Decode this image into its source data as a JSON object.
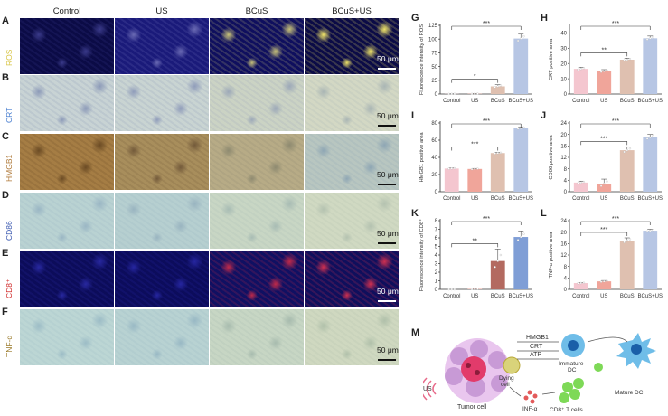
{
  "micro": {
    "columns": [
      "Control",
      "US",
      "BCuS",
      "BCuS+US"
    ],
    "rows": [
      {
        "letter": "A",
        "label": "ROS",
        "label_color": "#d9c64a",
        "tone": "fluor_ros",
        "scale": "50 μm",
        "scale_dark": false
      },
      {
        "letter": "B",
        "label": "CRT",
        "label_color": "#4a7fd0",
        "tone": "ihc_blue",
        "scale": "50 μm",
        "scale_dark": true
      },
      {
        "letter": "C",
        "label": "HMGB1",
        "label_color": "#b07a3a",
        "tone": "ihc_brown",
        "scale": "50 μm",
        "scale_dark": true
      },
      {
        "letter": "D",
        "label": "CD86",
        "label_color": "#3a58b0",
        "tone": "ihc_teal",
        "scale": "50 μm",
        "scale_dark": true
      },
      {
        "letter": "E",
        "label": "CD8⁺",
        "label_color": "#d02a2a",
        "tone": "fluor_cd8",
        "scale": "50 μm",
        "scale_dark": false
      },
      {
        "letter": "F",
        "label": "TNF-α",
        "label_color": "#9a7a2a",
        "tone": "ihc_teal2",
        "scale": "50 μm",
        "scale_dark": true
      }
    ]
  },
  "chart_data": [
    {
      "panel": "G",
      "type": "bar",
      "ylabel": "Fluorescence intensity of ROS",
      "categories": [
        "Control",
        "US",
        "BCuS",
        "BCuS+US"
      ],
      "values": [
        0.3,
        0.5,
        14,
        101
      ],
      "errors": [
        0.3,
        0.4,
        3,
        8
      ],
      "ylim": [
        0,
        125
      ],
      "yticks": [
        0,
        25,
        50,
        75,
        100,
        125
      ],
      "colors": [
        "#f4c6cf",
        "#f0a59a",
        "#dfc0b0",
        "#b7c6e4"
      ],
      "sig": [
        {
          "from": 0,
          "to": 2,
          "label": "*"
        },
        {
          "from": 0,
          "to": 3,
          "label": "***"
        }
      ]
    },
    {
      "panel": "H",
      "type": "bar",
      "ylabel": "CRT positive area",
      "categories": [
        "Control",
        "US",
        "BCuS",
        "BCuS+US"
      ],
      "values": [
        16.5,
        15,
        22.5,
        36.5
      ],
      "errors": [
        1,
        1,
        1,
        1.5
      ],
      "ylim": [
        0,
        45
      ],
      "yticks": [
        0,
        10,
        20,
        30,
        40
      ],
      "colors": [
        "#f4c6cf",
        "#f0a59a",
        "#dfc0b0",
        "#b7c6e4"
      ],
      "sig": [
        {
          "from": 0,
          "to": 2,
          "label": "**"
        },
        {
          "from": 0,
          "to": 3,
          "label": "***"
        }
      ]
    },
    {
      "panel": "I",
      "type": "bar",
      "ylabel": "HMGB1 positive area",
      "categories": [
        "Control",
        "US",
        "BCuS",
        "BCuS+US"
      ],
      "values": [
        27,
        26.5,
        45,
        74
      ],
      "errors": [
        0.6,
        0.6,
        0.8,
        1.5
      ],
      "ylim": [
        0,
        80
      ],
      "yticks": [
        0,
        20,
        40,
        60,
        80
      ],
      "colors": [
        "#f4c6cf",
        "#f0a59a",
        "#dfc0b0",
        "#b7c6e4"
      ],
      "sig": [
        {
          "from": 0,
          "to": 2,
          "label": "***"
        },
        {
          "from": 0,
          "to": 3,
          "label": "***"
        }
      ]
    },
    {
      "panel": "J",
      "type": "bar",
      "ylabel": "CD86 positive area",
      "categories": [
        "Control",
        "US",
        "BCuS",
        "BCuS+US"
      ],
      "values": [
        3.2,
        2.8,
        14.5,
        19
      ],
      "errors": [
        0.5,
        1.6,
        1.2,
        1
      ],
      "ylim": [
        0,
        24
      ],
      "yticks": [
        0,
        4,
        8,
        12,
        16,
        20,
        24
      ],
      "colors": [
        "#f4c6cf",
        "#f0a59a",
        "#dfc0b0",
        "#b7c6e4"
      ],
      "sig": [
        {
          "from": 0,
          "to": 2,
          "label": "***"
        },
        {
          "from": 0,
          "to": 3,
          "label": "***"
        }
      ]
    },
    {
      "panel": "K",
      "type": "bar",
      "ylabel": "Fluorescence intensity of CD8⁺",
      "categories": [
        "Control",
        "US",
        "BCuS",
        "BCuS+US"
      ],
      "values": [
        0,
        0.05,
        3.3,
        6.1
      ],
      "errors": [
        0,
        0.05,
        1.4,
        0.7
      ],
      "ylim": [
        0,
        8
      ],
      "yticks": [
        0,
        1,
        2,
        3,
        4,
        5,
        6,
        7,
        8
      ],
      "colors": [
        "#f4c6cf",
        "#f0a59a",
        "#b36a60",
        "#7f9ed6"
      ],
      "sig": [
        {
          "from": 0,
          "to": 2,
          "label": "**"
        },
        {
          "from": 0,
          "to": 3,
          "label": "***"
        }
      ]
    },
    {
      "panel": "L",
      "type": "bar",
      "ylabel": "TNF-α positive area",
      "categories": [
        "Control",
        "US",
        "BCuS",
        "BCuS+US"
      ],
      "values": [
        2.2,
        2.8,
        17,
        20.5
      ],
      "errors": [
        0.2,
        0.3,
        1,
        0.5
      ],
      "ylim": [
        0,
        24
      ],
      "yticks": [
        0,
        4,
        8,
        12,
        16,
        20,
        24
      ],
      "colors": [
        "#f4c6cf",
        "#f0a59a",
        "#dfc0b0",
        "#b7c6e4"
      ],
      "sig": [
        {
          "from": 0,
          "to": 2,
          "label": "***"
        },
        {
          "from": 0,
          "to": 3,
          "label": "***"
        }
      ]
    }
  ],
  "schematic": {
    "letter": "M",
    "labels": {
      "hmgb1": "HMGB1",
      "crt": "CRT",
      "atp": "ATP",
      "dying": "Dying",
      "dying2": "cell",
      "immature": "Immature",
      "immature2": "DC",
      "mature": "Mature DC",
      "tumor": "Tumor cell",
      "us": "US",
      "tcells": "CD8⁺ T cells",
      "inf": "INF-α"
    }
  }
}
